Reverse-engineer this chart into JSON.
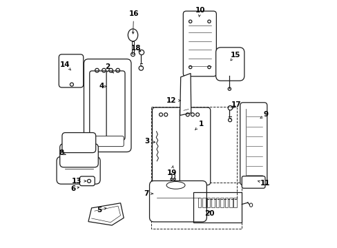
{
  "bg_color": "#ffffff",
  "line_color": "#1a1a1a",
  "parts_labels": {
    "1": [
      0.595,
      0.535,
      0.62,
      0.495
    ],
    "2": [
      0.31,
      0.295,
      0.285,
      0.27
    ],
    "3": [
      0.475,
      0.565,
      0.435,
      0.56
    ],
    "4": [
      0.295,
      0.34,
      0.27,
      0.345
    ],
    "5": [
      0.295,
      0.845,
      0.26,
      0.855
    ],
    "6": [
      0.145,
      0.76,
      0.135,
      0.79
    ],
    "7": [
      0.48,
      0.78,
      0.445,
      0.78
    ],
    "8": [
      0.1,
      0.6,
      0.082,
      0.61
    ],
    "9": [
      0.87,
      0.49,
      0.89,
      0.47
    ],
    "10": [
      0.615,
      0.07,
      0.62,
      0.045
    ],
    "11": [
      0.86,
      0.72,
      0.885,
      0.735
    ],
    "12": [
      0.56,
      0.395,
      0.52,
      0.4
    ],
    "13": [
      0.165,
      0.73,
      0.13,
      0.73
    ],
    "14": [
      0.105,
      0.285,
      0.09,
      0.26
    ],
    "15": [
      0.75,
      0.24,
      0.765,
      0.215
    ],
    "16": [
      0.36,
      0.06,
      0.363,
      0.04
    ],
    "17": [
      0.745,
      0.445,
      0.768,
      0.425
    ],
    "18": [
      0.385,
      0.195,
      0.363,
      0.18
    ],
    "19": [
      0.515,
      0.665,
      0.51,
      0.695
    ],
    "20": [
      0.665,
      0.845,
      0.665,
      0.86
    ]
  }
}
